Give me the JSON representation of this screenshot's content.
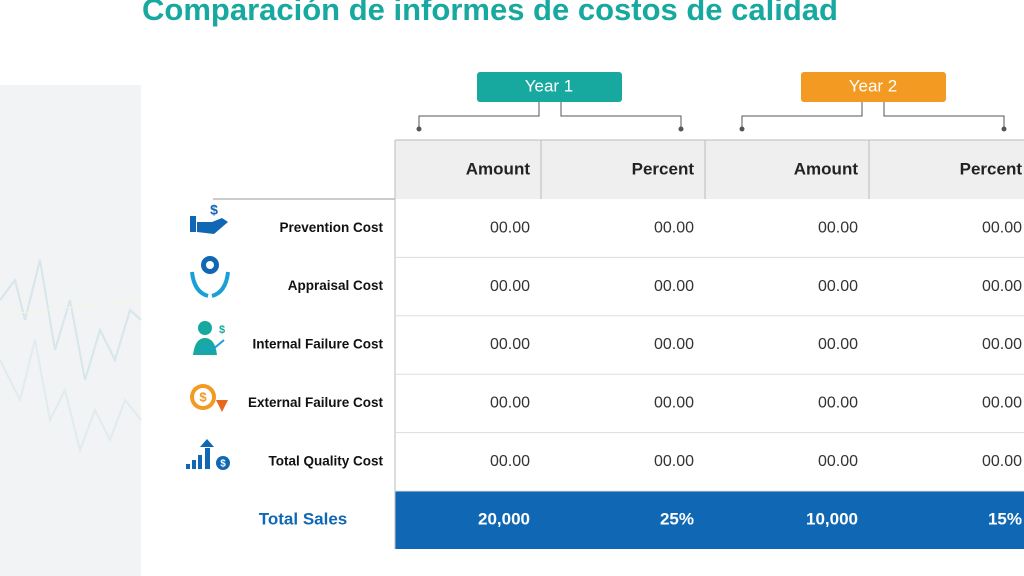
{
  "title": "Comparación de informes de costos de calidad",
  "groups": [
    "Year 1",
    "Year 2"
  ],
  "table": {
    "header": [
      "Amount",
      "Percent",
      "Amount",
      "Percent"
    ],
    "rows": [
      {
        "label": "Prevention Cost",
        "cells": [
          "00.00",
          "00.00",
          "00.00",
          "00.00"
        ]
      },
      {
        "label": "Appraisal Cost",
        "cells": [
          "00.00",
          "00.00",
          "00.00",
          "00.00"
        ]
      },
      {
        "label": "Internal Failure Cost",
        "cells": [
          "00.00",
          "00.00",
          "00.00",
          "00.00"
        ]
      },
      {
        "label": "External Failure Cost",
        "cells": [
          "00.00",
          "00.00",
          "00.00",
          "00.00"
        ]
      },
      {
        "label": "Total Quality Cost",
        "cells": [
          "00.00",
          "00.00",
          "00.00",
          "00.00"
        ]
      }
    ],
    "total": {
      "label": "Total Sales",
      "cells": [
        "20,000",
        "25%",
        "10,000",
        "15%"
      ]
    }
  }
}
